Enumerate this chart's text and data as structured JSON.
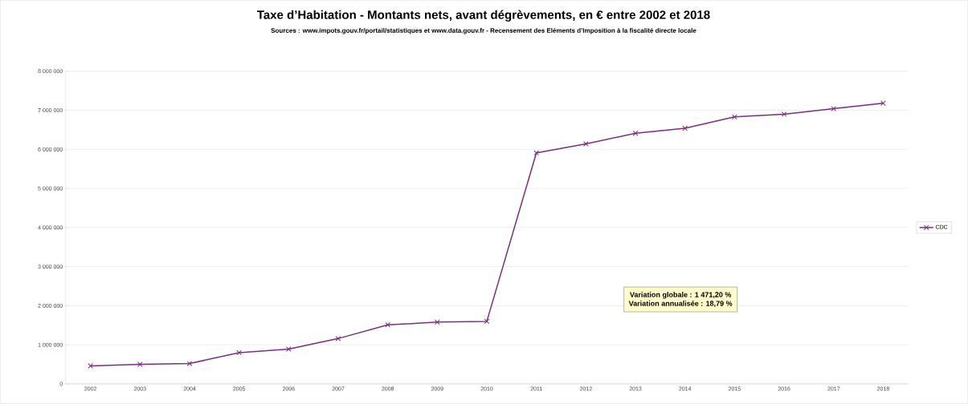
{
  "chart_data": {
    "type": "line",
    "title": "Taxe d’Habitation - Montants nets, avant dégrèvements, en € entre 2002 et 2018",
    "subtitle": "Sources : www.impots.gouv.fr/portail/statistiques et www.data.gouv.fr - Recensement des Eléments d’Imposition à la fiscalité directe locale",
    "annotations": [
      "Variation globale : 1 471,20 %",
      "Variation annualisée : 18,79 %"
    ],
    "categories": [
      "2002",
      "2003",
      "2004",
      "2005",
      "2006",
      "2007",
      "2008",
      "2009",
      "2010",
      "2011",
      "2012",
      "2013",
      "2014",
      "2015",
      "2016",
      "2017",
      "2018"
    ],
    "series": [
      {
        "name": "CDC",
        "color": "#7b2c7f",
        "values": [
          460000,
          500000,
          520000,
          800000,
          890000,
          1160000,
          1510000,
          1580000,
          1600000,
          5910000,
          6140000,
          6410000,
          6540000,
          6830000,
          6900000,
          7040000,
          7180000
        ]
      }
    ],
    "ylim": [
      0,
      8000000
    ],
    "yticks": [
      {
        "value": 0,
        "label": "0"
      },
      {
        "value": 1000000,
        "label": "1 000 000"
      },
      {
        "value": 2000000,
        "label": "2 000 000"
      },
      {
        "value": 3000000,
        "label": "3 000 000"
      },
      {
        "value": 4000000,
        "label": "4 000 000"
      },
      {
        "value": 5000000,
        "label": "5 000 000"
      },
      {
        "value": 6000000,
        "label": "6 000 000"
      },
      {
        "value": 7000000,
        "label": "7 000 000"
      },
      {
        "value": 8000000,
        "label": "8 000 000"
      }
    ],
    "grid": "y",
    "legend": "right",
    "marker": "cross",
    "line_style": "solid"
  }
}
